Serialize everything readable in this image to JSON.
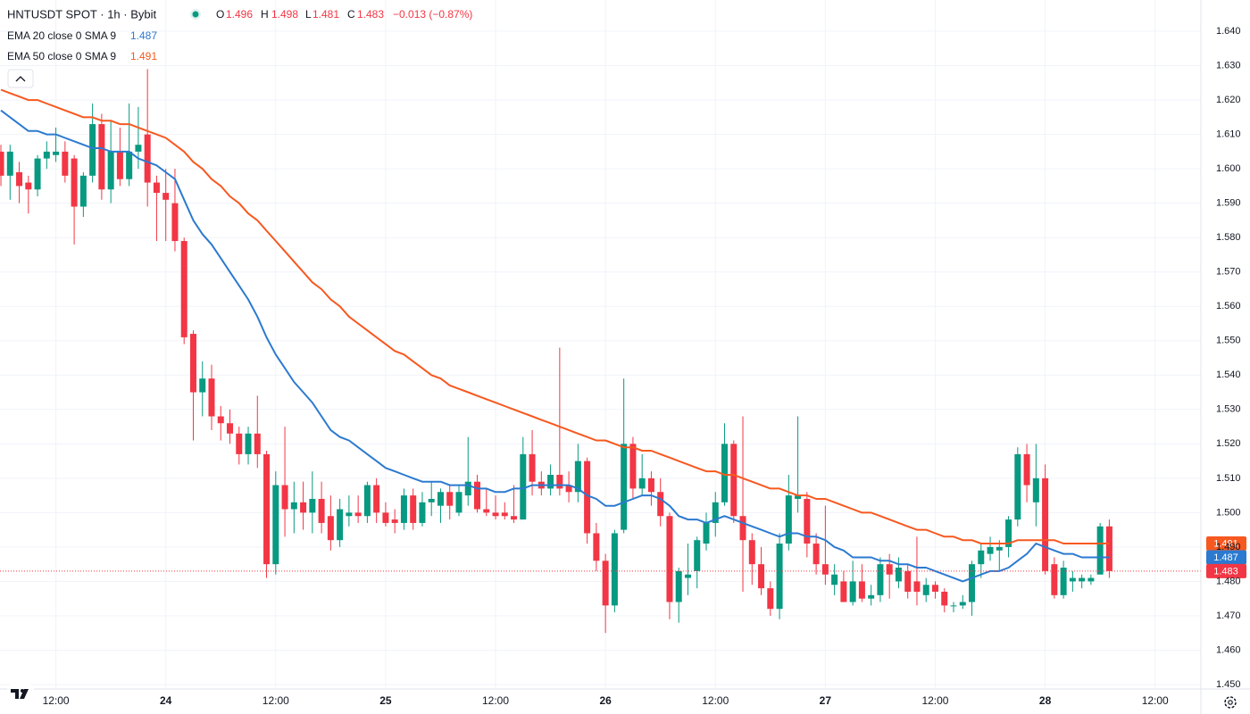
{
  "chart_data": {
    "type": "candlestick",
    "title": "HNTUSDT SPOT · 1h · Bybit",
    "ohlc_labels": [
      "O",
      "H",
      "L",
      "C"
    ],
    "change": "−0.013 (−0.87%)",
    "up_color": "#089981",
    "down_color": "#f23645",
    "open": [
      1.605,
      1.598,
      1.599,
      1.596,
      1.594,
      1.603,
      1.604,
      1.605,
      1.603,
      1.589,
      1.598,
      1.613,
      1.594,
      1.605,
      1.597,
      1.605,
      1.61,
      1.596,
      1.593,
      1.59,
      1.579,
      1.552,
      1.535,
      1.539,
      1.528,
      1.526,
      1.523,
      1.517,
      1.523,
      1.517,
      1.485,
      1.508,
      1.501,
      1.503,
      1.5,
      1.504,
      1.499,
      1.492,
      1.499,
      1.5,
      1.499,
      1.508,
      1.5,
      1.498,
      1.497,
      1.505,
      1.497,
      1.503,
      1.502,
      1.506,
      1.5,
      1.505,
      1.509,
      1.501,
      1.5,
      1.5,
      1.499,
      1.498,
      1.517,
      1.509,
      1.507,
      1.511,
      1.508,
      1.506,
      1.515,
      1.494,
      1.486,
      1.473,
      1.495,
      1.52,
      1.507,
      1.51,
      1.506,
      1.499,
      1.474,
      1.481,
      1.483,
      1.491,
      1.497,
      1.503,
      1.52,
      1.499,
      1.492,
      1.485,
      1.478,
      1.472,
      1.491,
      1.504,
      1.504,
      1.491,
      1.485,
      1.479,
      1.48,
      1.474,
      1.48,
      1.475,
      1.476,
      1.485,
      1.48,
      1.483,
      1.48,
      1.476,
      1.479,
      1.477,
      1.473,
      1.473,
      1.474,
      1.485,
      1.488,
      1.489,
      1.49,
      1.498,
      1.517,
      1.503,
      1.51,
      1.485,
      1.476,
      1.48,
      1.48,
      1.48,
      1.482,
      1.496
    ],
    "high": [
      1.607,
      1.607,
      1.602,
      1.598,
      1.604,
      1.608,
      1.612,
      1.608,
      1.604,
      1.599,
      1.619,
      1.616,
      1.614,
      1.612,
      1.619,
      1.618,
      1.629,
      1.598,
      1.6,
      1.6,
      1.58,
      1.553,
      1.544,
      1.543,
      1.531,
      1.53,
      1.525,
      1.525,
      1.534,
      1.518,
      1.512,
      1.525,
      1.509,
      1.509,
      1.512,
      1.509,
      1.505,
      1.504,
      1.505,
      1.505,
      1.509,
      1.51,
      1.503,
      1.501,
      1.507,
      1.507,
      1.506,
      1.509,
      1.507,
      1.508,
      1.508,
      1.522,
      1.511,
      1.507,
      1.505,
      1.503,
      1.508,
      1.522,
      1.524,
      1.512,
      1.514,
      1.548,
      1.512,
      1.52,
      1.516,
      1.497,
      1.488,
      1.495,
      1.539,
      1.522,
      1.517,
      1.512,
      1.51,
      1.5,
      1.484,
      1.491,
      1.493,
      1.5,
      1.506,
      1.526,
      1.521,
      1.528,
      1.494,
      1.49,
      1.48,
      1.494,
      1.511,
      1.528,
      1.506,
      1.494,
      1.502,
      1.485,
      1.483,
      1.486,
      1.485,
      1.479,
      1.487,
      1.488,
      1.487,
      1.485,
      1.493,
      1.481,
      1.48,
      1.478,
      1.474,
      1.476,
      1.486,
      1.491,
      1.493,
      1.492,
      1.499,
      1.519,
      1.52,
      1.52,
      1.514,
      1.487,
      1.486,
      1.483,
      1.482,
      1.482,
      1.497,
      1.498
    ],
    "low": [
      1.595,
      1.591,
      1.59,
      1.587,
      1.592,
      1.6,
      1.602,
      1.596,
      1.578,
      1.586,
      1.596,
      1.591,
      1.59,
      1.595,
      1.595,
      1.6,
      1.589,
      1.579,
      1.579,
      1.576,
      1.549,
      1.521,
      1.528,
      1.524,
      1.521,
      1.52,
      1.514,
      1.514,
      1.513,
      1.481,
      1.482,
      1.493,
      1.494,
      1.495,
      1.494,
      1.494,
      1.489,
      1.49,
      1.496,
      1.497,
      1.497,
      1.497,
      1.496,
      1.494,
      1.495,
      1.495,
      1.496,
      1.499,
      1.497,
      1.498,
      1.499,
      1.502,
      1.5,
      1.499,
      1.498,
      1.498,
      1.497,
      1.498,
      1.505,
      1.505,
      1.505,
      1.505,
      1.503,
      1.503,
      1.491,
      1.483,
      1.465,
      1.471,
      1.494,
      1.504,
      1.505,
      1.502,
      1.496,
      1.469,
      1.468,
      1.476,
      1.478,
      1.489,
      1.493,
      1.502,
      1.497,
      1.477,
      1.479,
      1.476,
      1.47,
      1.469,
      1.489,
      1.5,
      1.487,
      1.482,
      1.479,
      1.476,
      1.474,
      1.473,
      1.474,
      1.473,
      1.474,
      1.475,
      1.478,
      1.475,
      1.473,
      1.474,
      1.475,
      1.471,
      1.471,
      1.472,
      1.47,
      1.481,
      1.486,
      1.483,
      1.487,
      1.496,
      1.503,
      1.496,
      1.482,
      1.475,
      1.475,
      1.477,
      1.478,
      1.479,
      1.482,
      1.481
    ],
    "close": [
      1.598,
      1.605,
      1.595,
      1.594,
      1.603,
      1.605,
      1.605,
      1.598,
      1.589,
      1.598,
      1.613,
      1.594,
      1.605,
      1.597,
      1.605,
      1.607,
      1.596,
      1.593,
      1.591,
      1.579,
      1.551,
      1.535,
      1.539,
      1.528,
      1.526,
      1.523,
      1.517,
      1.523,
      1.517,
      1.485,
      1.508,
      1.501,
      1.503,
      1.5,
      1.504,
      1.497,
      1.492,
      1.501,
      1.5,
      1.499,
      1.508,
      1.5,
      1.497,
      1.497,
      1.505,
      1.497,
      1.503,
      1.504,
      1.506,
      1.502,
      1.506,
      1.509,
      1.501,
      1.5,
      1.499,
      1.499,
      1.498,
      1.517,
      1.509,
      1.507,
      1.511,
      1.507,
      1.506,
      1.515,
      1.494,
      1.486,
      1.473,
      1.494,
      1.52,
      1.507,
      1.51,
      1.506,
      1.499,
      1.474,
      1.483,
      1.482,
      1.492,
      1.497,
      1.503,
      1.52,
      1.499,
      1.492,
      1.485,
      1.478,
      1.472,
      1.491,
      1.505,
      1.505,
      1.491,
      1.485,
      1.482,
      1.482,
      1.474,
      1.48,
      1.475,
      1.476,
      1.485,
      1.482,
      1.484,
      1.477,
      1.477,
      1.479,
      1.477,
      1.473,
      1.473,
      1.474,
      1.485,
      1.489,
      1.49,
      1.49,
      1.498,
      1.517,
      1.508,
      1.51,
      1.483,
      1.476,
      1.484,
      1.481,
      1.481,
      1.481,
      1.496,
      1.483
    ],
    "series": [
      {
        "name": "EMA 20 close 0 SMA 9",
        "color": "#2b7ad0",
        "values": [
          1.617,
          1.615,
          1.613,
          1.611,
          1.611,
          1.61,
          1.61,
          1.609,
          1.608,
          1.607,
          1.606,
          1.606,
          1.605,
          1.605,
          1.605,
          1.603,
          1.602,
          1.601,
          1.599,
          1.597,
          1.591,
          1.585,
          1.581,
          1.578,
          1.574,
          1.57,
          1.566,
          1.562,
          1.557,
          1.551,
          1.546,
          1.542,
          1.538,
          1.535,
          1.532,
          1.528,
          1.524,
          1.522,
          1.521,
          1.519,
          1.517,
          1.515,
          1.513,
          1.512,
          1.511,
          1.51,
          1.509,
          1.509,
          1.509,
          1.508,
          1.508,
          1.508,
          1.507,
          1.507,
          1.506,
          1.506,
          1.507,
          1.507,
          1.508,
          1.508,
          1.508,
          1.508,
          1.508,
          1.507,
          1.505,
          1.504,
          1.502,
          1.502,
          1.503,
          1.504,
          1.505,
          1.505,
          1.504,
          1.502,
          1.499,
          1.498,
          1.498,
          1.497,
          1.498,
          1.499,
          1.498,
          1.497,
          1.496,
          1.495,
          1.494,
          1.493,
          1.494,
          1.494,
          1.493,
          1.493,
          1.492,
          1.49,
          1.489,
          1.487,
          1.487,
          1.487,
          1.486,
          1.486,
          1.485,
          1.485,
          1.484,
          1.484,
          1.483,
          1.482,
          1.481,
          1.48,
          1.481,
          1.482,
          1.483,
          1.483,
          1.484,
          1.486,
          1.488,
          1.491,
          1.49,
          1.489,
          1.488,
          1.488,
          1.487,
          1.487,
          1.487,
          1.487
        ]
      },
      {
        "name": "EMA 50 close 0 SMA 9",
        "color": "#f7581f",
        "values": [
          1.623,
          1.622,
          1.621,
          1.62,
          1.62,
          1.619,
          1.618,
          1.617,
          1.616,
          1.615,
          1.615,
          1.614,
          1.614,
          1.613,
          1.613,
          1.612,
          1.611,
          1.61,
          1.609,
          1.607,
          1.605,
          1.602,
          1.6,
          1.597,
          1.595,
          1.592,
          1.59,
          1.587,
          1.585,
          1.582,
          1.579,
          1.576,
          1.573,
          1.57,
          1.567,
          1.565,
          1.562,
          1.56,
          1.557,
          1.555,
          1.553,
          1.551,
          1.549,
          1.547,
          1.546,
          1.544,
          1.542,
          1.54,
          1.539,
          1.537,
          1.536,
          1.535,
          1.534,
          1.533,
          1.532,
          1.531,
          1.53,
          1.529,
          1.528,
          1.527,
          1.526,
          1.525,
          1.524,
          1.523,
          1.522,
          1.521,
          1.521,
          1.52,
          1.519,
          1.519,
          1.518,
          1.518,
          1.517,
          1.516,
          1.515,
          1.514,
          1.513,
          1.512,
          1.512,
          1.511,
          1.511,
          1.51,
          1.509,
          1.508,
          1.507,
          1.507,
          1.506,
          1.505,
          1.505,
          1.504,
          1.504,
          1.503,
          1.502,
          1.501,
          1.5,
          1.5,
          1.499,
          1.498,
          1.497,
          1.496,
          1.495,
          1.495,
          1.494,
          1.493,
          1.493,
          1.492,
          1.492,
          1.491,
          1.491,
          1.491,
          1.491,
          1.492,
          1.492,
          1.492,
          1.492,
          1.492,
          1.491,
          1.491,
          1.491,
          1.491,
          1.491,
          1.491
        ]
      }
    ],
    "xlim": [
      -0.1,
      131
    ],
    "xticks": [
      {
        "value": 6,
        "label": "12:00"
      },
      {
        "value": 18,
        "label": "24"
      },
      {
        "value": 30,
        "label": "12:00"
      },
      {
        "value": 42,
        "label": "25"
      },
      {
        "value": 54,
        "label": "12:00"
      },
      {
        "value": 66,
        "label": "26"
      },
      {
        "value": 78,
        "label": "12:00"
      },
      {
        "value": 90,
        "label": "27"
      },
      {
        "value": 102,
        "label": "12:00"
      },
      {
        "value": 114,
        "label": "28"
      },
      {
        "value": 126,
        "label": "12:00"
      }
    ],
    "ylim": [
      1.4487,
      1.6491
    ],
    "yticks": [
      {
        "value": 1.45,
        "label": "1.450"
      },
      {
        "value": 1.46,
        "label": "1.460"
      },
      {
        "value": 1.47,
        "label": "1.470"
      },
      {
        "value": 1.48,
        "label": "1.480"
      },
      {
        "value": 1.49,
        "label": "1.490"
      },
      {
        "value": 1.5,
        "label": "1.500"
      },
      {
        "value": 1.51,
        "label": "1.510"
      },
      {
        "value": 1.52,
        "label": "1.520"
      },
      {
        "value": 1.53,
        "label": "1.530"
      },
      {
        "value": 1.54,
        "label": "1.540"
      },
      {
        "value": 1.55,
        "label": "1.550"
      },
      {
        "value": 1.56,
        "label": "1.560"
      },
      {
        "value": 1.57,
        "label": "1.570"
      },
      {
        "value": 1.58,
        "label": "1.580"
      },
      {
        "value": 1.59,
        "label": "1.590"
      },
      {
        "value": 1.6,
        "label": "1.600"
      },
      {
        "value": 1.61,
        "label": "1.610"
      },
      {
        "value": 1.62,
        "label": "1.620"
      },
      {
        "value": 1.63,
        "label": "1.630"
      },
      {
        "value": 1.64,
        "label": "1.640"
      }
    ],
    "grid": true
  }
}
